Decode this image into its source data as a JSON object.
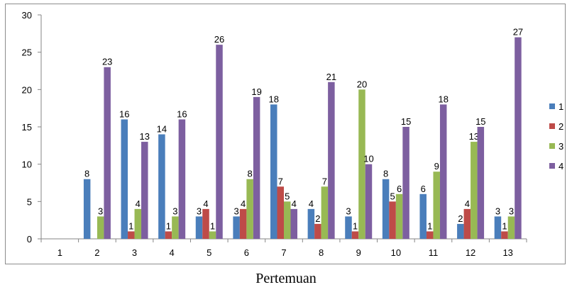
{
  "chart_data": {
    "type": "bar",
    "categories": [
      "1",
      "2",
      "3",
      "4",
      "5",
      "6",
      "7",
      "8",
      "9",
      "10",
      "11",
      "12",
      "13"
    ],
    "series": [
      {
        "name": "1",
        "color": "#4a7ebb",
        "values": [
          0,
          8,
          16,
          14,
          3,
          3,
          18,
          4,
          3,
          8,
          6,
          2,
          3
        ]
      },
      {
        "name": "2",
        "color": "#be4b48",
        "values": [
          0,
          0,
          1,
          1,
          4,
          4,
          7,
          2,
          1,
          5,
          1,
          4,
          1
        ]
      },
      {
        "name": "3",
        "color": "#98b954",
        "values": [
          0,
          3,
          4,
          3,
          1,
          8,
          5,
          7,
          20,
          6,
          9,
          13,
          3
        ]
      },
      {
        "name": "4",
        "color": "#7d5fa0",
        "values": [
          0,
          23,
          13,
          16,
          26,
          19,
          4,
          21,
          10,
          15,
          18,
          15,
          27
        ]
      }
    ],
    "yticks": [
      "0",
      "5",
      "10",
      "15",
      "20",
      "25",
      "30"
    ],
    "ylim": [
      0,
      30
    ],
    "xlabel": "Pertemuan",
    "ylabel": "",
    "title": "",
    "grid": false,
    "legend": "right",
    "value_labels": true
  }
}
